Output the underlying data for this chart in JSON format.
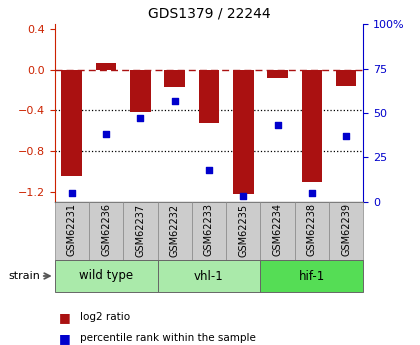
{
  "title": "GDS1379 / 22244",
  "samples": [
    "GSM62231",
    "GSM62236",
    "GSM62237",
    "GSM62232",
    "GSM62233",
    "GSM62235",
    "GSM62234",
    "GSM62238",
    "GSM62239"
  ],
  "log2_ratio": [
    -1.05,
    0.07,
    -0.42,
    -0.17,
    -0.52,
    -1.22,
    -0.08,
    -1.1,
    -0.16
  ],
  "percentile_rank": [
    5,
    38,
    47,
    57,
    18,
    3,
    43,
    5,
    37
  ],
  "group_colors": [
    "#aaeaaa",
    "#aaeaaa",
    "#55dd55"
  ],
  "group_ranges": [
    [
      0,
      3
    ],
    [
      3,
      6
    ],
    [
      6,
      9
    ]
  ],
  "group_labels": [
    "wild type",
    "vhl-1",
    "hif-1"
  ],
  "bar_color": "#aa1111",
  "scatter_color": "#0000cc",
  "sample_box_color": "#cccccc",
  "ylim_left": [
    -1.3,
    0.45
  ],
  "ylim_right": [
    0,
    100
  ],
  "yticks_left": [
    -1.2,
    -0.8,
    -0.4,
    0.0,
    0.4
  ],
  "yticks_right": [
    0,
    25,
    50,
    75,
    100
  ],
  "ytick_labels_right": [
    "0",
    "25",
    "50",
    "75",
    "100%"
  ],
  "hline_y": 0.0,
  "dotted_lines": [
    -0.4,
    -0.8
  ],
  "bar_width": 0.6,
  "legend_log2": "log2 ratio",
  "legend_pct": "percentile rank within the sample",
  "left_tick_color": "#cc2200",
  "right_tick_color": "#0000cc"
}
